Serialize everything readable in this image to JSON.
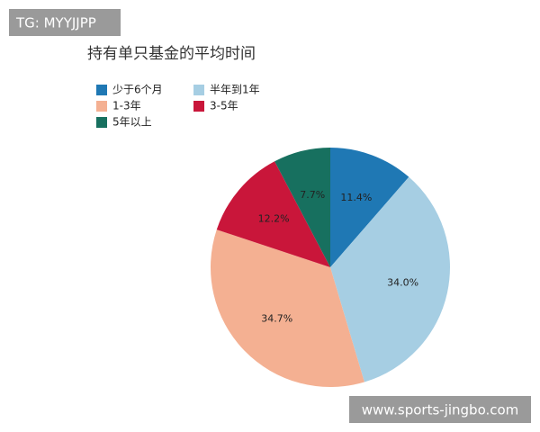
{
  "chart_data": {
    "type": "pie",
    "title": "持有单只基金的平均时间",
    "categories": [
      "少于6个月",
      "半年到1年",
      "1-3年",
      "3-5年",
      "5年以上"
    ],
    "values": [
      11.4,
      34.0,
      34.7,
      12.2,
      7.7
    ],
    "value_labels": [
      "11.4%",
      "34.0%",
      "34.7%",
      "12.2%",
      "7.7%"
    ],
    "colors": [
      "#1f78b4",
      "#a6cee3",
      "#f4b092",
      "#c9163a",
      "#17705f"
    ],
    "legend": "top-left"
  },
  "watermarks": {
    "top_left": "TG: MYYJJPP",
    "bottom_right": "www.sports-jingbo.com"
  }
}
